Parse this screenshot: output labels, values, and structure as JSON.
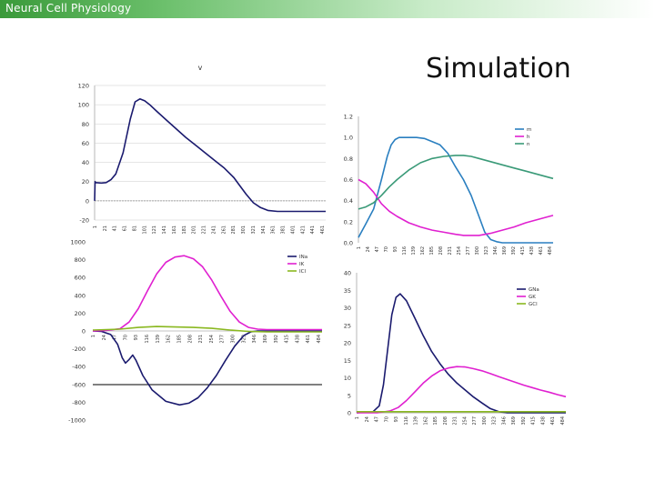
{
  "header": {
    "title": "Neural Cell Physiology"
  },
  "slide": {
    "title": "Simulation"
  },
  "colors": {
    "navy": "#1a1a6e",
    "magenta": "#e020d0",
    "blue": "#2a7fc0",
    "teal": "#3a9a78",
    "olive": "#8ab820",
    "grid": "#cccccc"
  },
  "chart_data": [
    {
      "id": "voltage",
      "type": "line",
      "title": "v",
      "ylim": [
        -20,
        120
      ],
      "yticks": [
        "120",
        "100",
        "80",
        "60",
        "40",
        "20",
        "0",
        "-20"
      ],
      "xticks": [
        "1",
        "21",
        "41",
        "61",
        "81",
        "101",
        "121",
        "141",
        "161",
        "181",
        "201",
        "221",
        "241",
        "261",
        "281",
        "301",
        "321",
        "341",
        "361",
        "381",
        "401",
        "421",
        "441",
        "461"
      ],
      "grid": true,
      "series": [
        {
          "color": "#1a1a6e",
          "x": [
            1,
            2,
            3,
            15,
            25,
            35,
            45,
            60,
            75,
            85,
            95,
            105,
            115,
            130,
            150,
            170,
            190,
            210,
            230,
            250,
            270,
            290,
            300,
            315,
            330,
            345,
            360,
            380,
            400,
            420,
            440,
            470,
            480
          ],
          "y": [
            0,
            20,
            19,
            18.5,
            19,
            22,
            28,
            50,
            85,
            103,
            106,
            104,
            100,
            93,
            84,
            75,
            66,
            58,
            50,
            42,
            34,
            24,
            17,
            7,
            -2,
            -7,
            -10,
            -11,
            -11,
            -11,
            -11,
            -11,
            -11
          ]
        }
      ]
    },
    {
      "id": "gating",
      "type": "line",
      "yticks": [
        "1.2",
        "1.0",
        "0.8",
        "0.6",
        "0.4",
        "0.2",
        "0.0"
      ],
      "xticks": [
        "1",
        "24",
        "47",
        "70",
        "93",
        "116",
        "139",
        "162",
        "185",
        "208",
        "231",
        "254",
        "277",
        "300",
        "323",
        "346",
        "369",
        "392",
        "415",
        "438",
        "461",
        "484"
      ],
      "ylim": [
        0,
        1.2
      ],
      "legend": "top-right",
      "series": [
        {
          "name": "m",
          "color": "#2a7fc0",
          "x": [
            1,
            20,
            40,
            60,
            75,
            85,
            95,
            105,
            115,
            130,
            150,
            170,
            190,
            210,
            230,
            250,
            270,
            290,
            310,
            325,
            340,
            355,
            370,
            400,
            440,
            480,
            500
          ],
          "y": [
            0.05,
            0.18,
            0.32,
            0.6,
            0.82,
            0.93,
            0.98,
            1.0,
            1.0,
            1.0,
            1.0,
            0.99,
            0.96,
            0.93,
            0.85,
            0.72,
            0.6,
            0.45,
            0.25,
            0.1,
            0.03,
            0.01,
            0.0,
            0.0,
            0.0,
            0.0,
            0.0
          ]
        },
        {
          "name": "h",
          "color": "#e020d0",
          "x": [
            1,
            20,
            40,
            60,
            80,
            100,
            130,
            160,
            190,
            220,
            250,
            270,
            290,
            310,
            340,
            370,
            400,
            430,
            460,
            490,
            500
          ],
          "y": [
            0.6,
            0.56,
            0.48,
            0.37,
            0.3,
            0.25,
            0.19,
            0.15,
            0.12,
            0.1,
            0.08,
            0.07,
            0.07,
            0.07,
            0.09,
            0.12,
            0.15,
            0.19,
            0.22,
            0.25,
            0.26
          ]
        },
        {
          "name": "n",
          "color": "#3a9a78",
          "x": [
            1,
            20,
            40,
            60,
            80,
            100,
            130,
            160,
            190,
            220,
            250,
            270,
            290,
            310,
            340,
            370,
            400,
            430,
            460,
            490,
            500
          ],
          "y": [
            0.32,
            0.34,
            0.38,
            0.45,
            0.53,
            0.6,
            0.69,
            0.76,
            0.8,
            0.82,
            0.83,
            0.83,
            0.82,
            0.8,
            0.77,
            0.74,
            0.71,
            0.68,
            0.65,
            0.62,
            0.61
          ]
        }
      ]
    },
    {
      "id": "currents",
      "type": "line",
      "yticks": [
        "1000",
        "800",
        "600",
        "400",
        "200",
        "0",
        "-200",
        "-400",
        "-600",
        "-800",
        "-1000"
      ],
      "xticks": [
        "1",
        "24",
        "47",
        "70",
        "93",
        "116",
        "139",
        "162",
        "185",
        "208",
        "231",
        "254",
        "277",
        "300",
        "323",
        "346",
        "369",
        "392",
        "415",
        "438",
        "461",
        "484"
      ],
      "ylim": [
        -1000,
        1000
      ],
      "legend": "top-right",
      "series": [
        {
          "name": "INa",
          "color": "#1a1a6e",
          "x": [
            1,
            20,
            40,
            55,
            65,
            72,
            80,
            88,
            95,
            110,
            130,
            160,
            190,
            210,
            230,
            250,
            270,
            290,
            310,
            330,
            345,
            360,
            380,
            420,
            460,
            500
          ],
          "y": [
            0,
            -5,
            -40,
            -150,
            -300,
            -360,
            -320,
            -270,
            -330,
            -500,
            -660,
            -790,
            -830,
            -810,
            -750,
            -640,
            -500,
            -330,
            -170,
            -50,
            -10,
            0,
            0,
            0,
            0,
            0
          ]
        },
        {
          "name": "IK",
          "color": "#e020d0",
          "x": [
            1,
            30,
            60,
            80,
            100,
            120,
            140,
            160,
            180,
            200,
            220,
            240,
            260,
            280,
            300,
            320,
            340,
            360,
            380,
            420,
            460,
            500
          ],
          "y": [
            0,
            5,
            25,
            100,
            250,
            450,
            640,
            770,
            830,
            845,
            810,
            720,
            570,
            390,
            220,
            100,
            40,
            20,
            15,
            15,
            15,
            15
          ]
        },
        {
          "name": "ICl",
          "color": "#8ab820",
          "x": [
            1,
            60,
            100,
            140,
            180,
            220,
            260,
            300,
            340,
            380,
            420,
            460,
            500
          ],
          "y": [
            10,
            20,
            40,
            50,
            45,
            40,
            30,
            10,
            -5,
            -10,
            -10,
            -10,
            -10
          ]
        }
      ]
    },
    {
      "id": "conductances",
      "type": "line",
      "yticks": [
        "40",
        "35",
        "30",
        "25",
        "20",
        "15",
        "10",
        "5",
        "0"
      ],
      "xticks": [
        "1",
        "24",
        "47",
        "70",
        "93",
        "116",
        "139",
        "162",
        "185",
        "208",
        "231",
        "254",
        "277",
        "300",
        "323",
        "346",
        "369",
        "392",
        "415",
        "438",
        "461",
        "484"
      ],
      "ylim": [
        0,
        40
      ],
      "legend": "top-right",
      "series": [
        {
          "name": "GNa",
          "color": "#1a1a6e",
          "x": [
            1,
            40,
            55,
            65,
            75,
            85,
            95,
            105,
            120,
            140,
            160,
            180,
            200,
            220,
            240,
            260,
            280,
            300,
            320,
            340,
            360,
            500
          ],
          "y": [
            0,
            0.3,
            2,
            8,
            18,
            28,
            33,
            34,
            32,
            27,
            22,
            17.5,
            14,
            11,
            8.5,
            6.5,
            4.5,
            2.8,
            1.2,
            0.3,
            0,
            0
          ]
        },
        {
          "name": "GK",
          "color": "#e020d0",
          "x": [
            1,
            50,
            80,
            100,
            120,
            140,
            160,
            180,
            200,
            220,
            240,
            260,
            280,
            300,
            320,
            340,
            360,
            380,
            400,
            420,
            440,
            460,
            480,
            500
          ],
          "y": [
            0,
            0,
            0.5,
            1.5,
            3.5,
            6,
            8.5,
            10.5,
            12,
            12.8,
            13.2,
            13.1,
            12.6,
            12,
            11.2,
            10.3,
            9.5,
            8.7,
            7.9,
            7.2,
            6.5,
            5.9,
            5.2,
            4.6
          ]
        },
        {
          "name": "GCl",
          "color": "#8ab820",
          "x": [
            1,
            500
          ],
          "y": [
            0.3,
            0.3
          ]
        }
      ]
    }
  ]
}
